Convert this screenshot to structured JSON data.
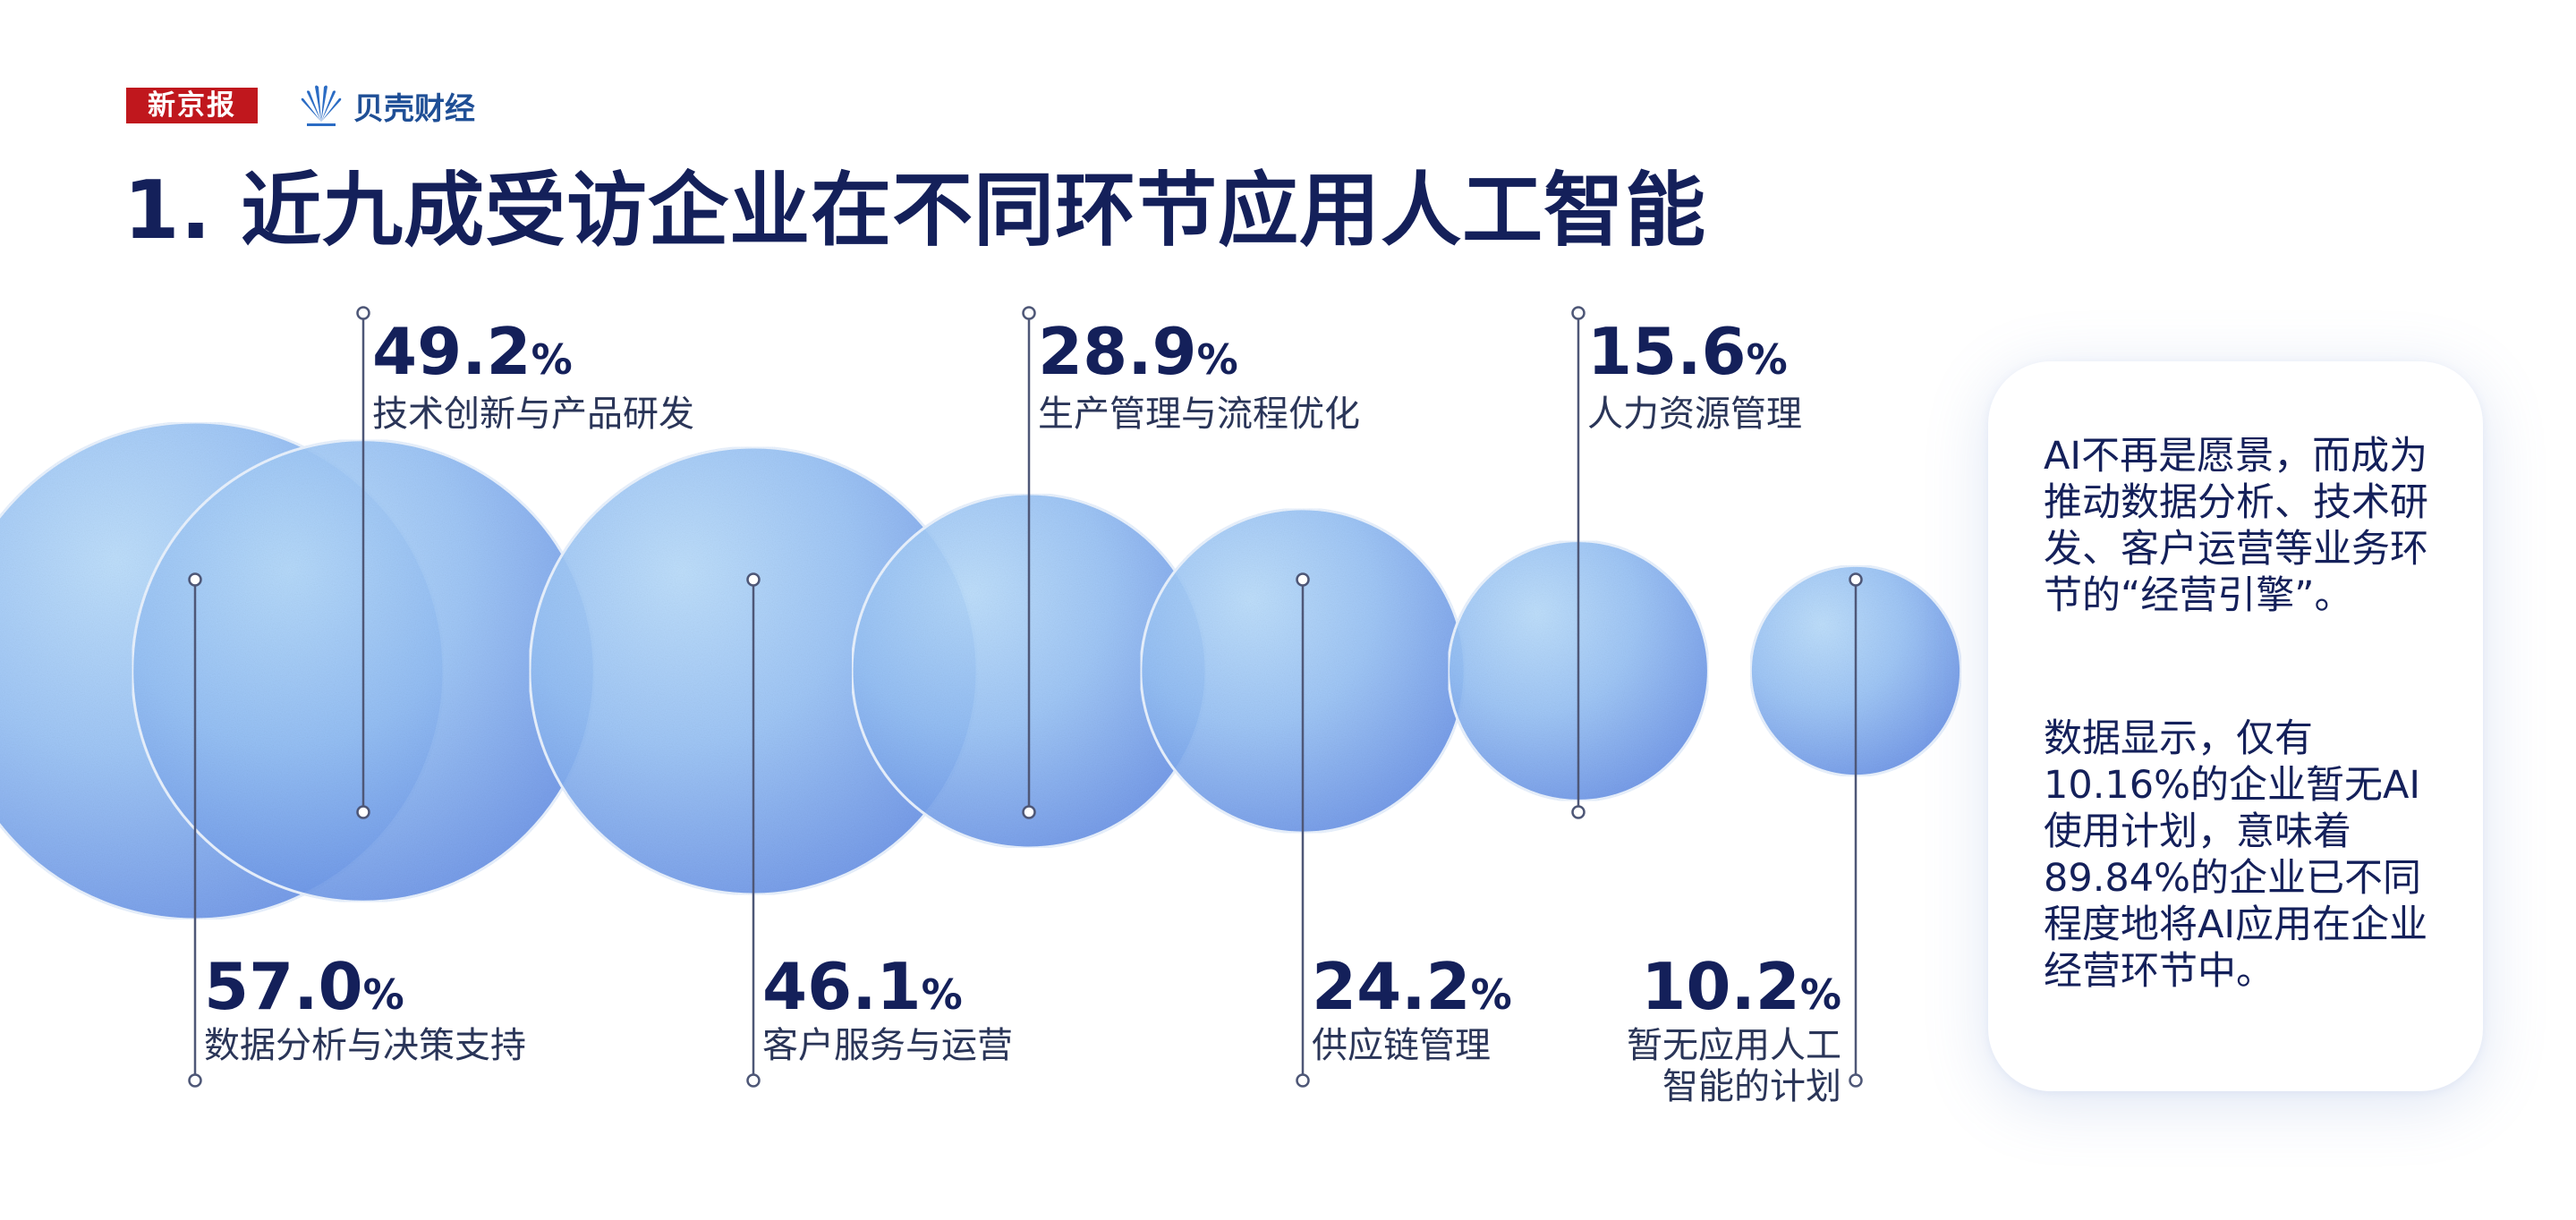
{
  "header": {
    "logo_xinjingbao": "新京报",
    "logo_beike": "贝壳财经",
    "title": "1. 近九成受访企业在不同环节应用人工智能"
  },
  "colors": {
    "title": "#14205a",
    "bubble_light": "#aed5f9",
    "bubble_dark": "#5f89e4",
    "line": "#4e5777",
    "brand_red": "#c0171d",
    "brand_blue": "#1f4f96"
  },
  "chart_data": {
    "type": "bubble",
    "unit": "%",
    "items": [
      {
        "label": "数据分析与决策支持",
        "value": 57.0
      },
      {
        "label": "技术创新与产品研发",
        "value": 49.2
      },
      {
        "label": "客户服务与运营",
        "value": 46.1
      },
      {
        "label": "生产管理与流程优化",
        "value": 28.9
      },
      {
        "label": "供应链管理",
        "value": 24.2
      },
      {
        "label": "人力资源管理",
        "value": 15.6
      },
      {
        "label": "暂无应用人工智能的计划",
        "value": 10.2
      }
    ]
  },
  "chart_text": {
    "values": [
      "57.0",
      "49.2",
      "46.1",
      "28.9",
      "24.2",
      "15.6",
      "10.2"
    ],
    "unit": "%",
    "label_lines": [
      [
        "数据分析与决策支持"
      ],
      [
        "技术创新与产品研发"
      ],
      [
        "客户服务与运营"
      ],
      [
        "生产管理与流程优化"
      ],
      [
        "供应链管理"
      ],
      [
        "人力资源管理"
      ],
      [
        "暂无应用人工",
        "智能的计划"
      ]
    ]
  },
  "side_note": {
    "paragraph1": "AI不再是愿景，而成为推动数据分析、技术研发、客户运营等业务环节的“经营引擎”。",
    "paragraph2": "数据显示，仅有10.16%的企业暂无AI使用计划，意味着89.84%的企业已不同程度地将AI应用在企业经营环节中。"
  }
}
